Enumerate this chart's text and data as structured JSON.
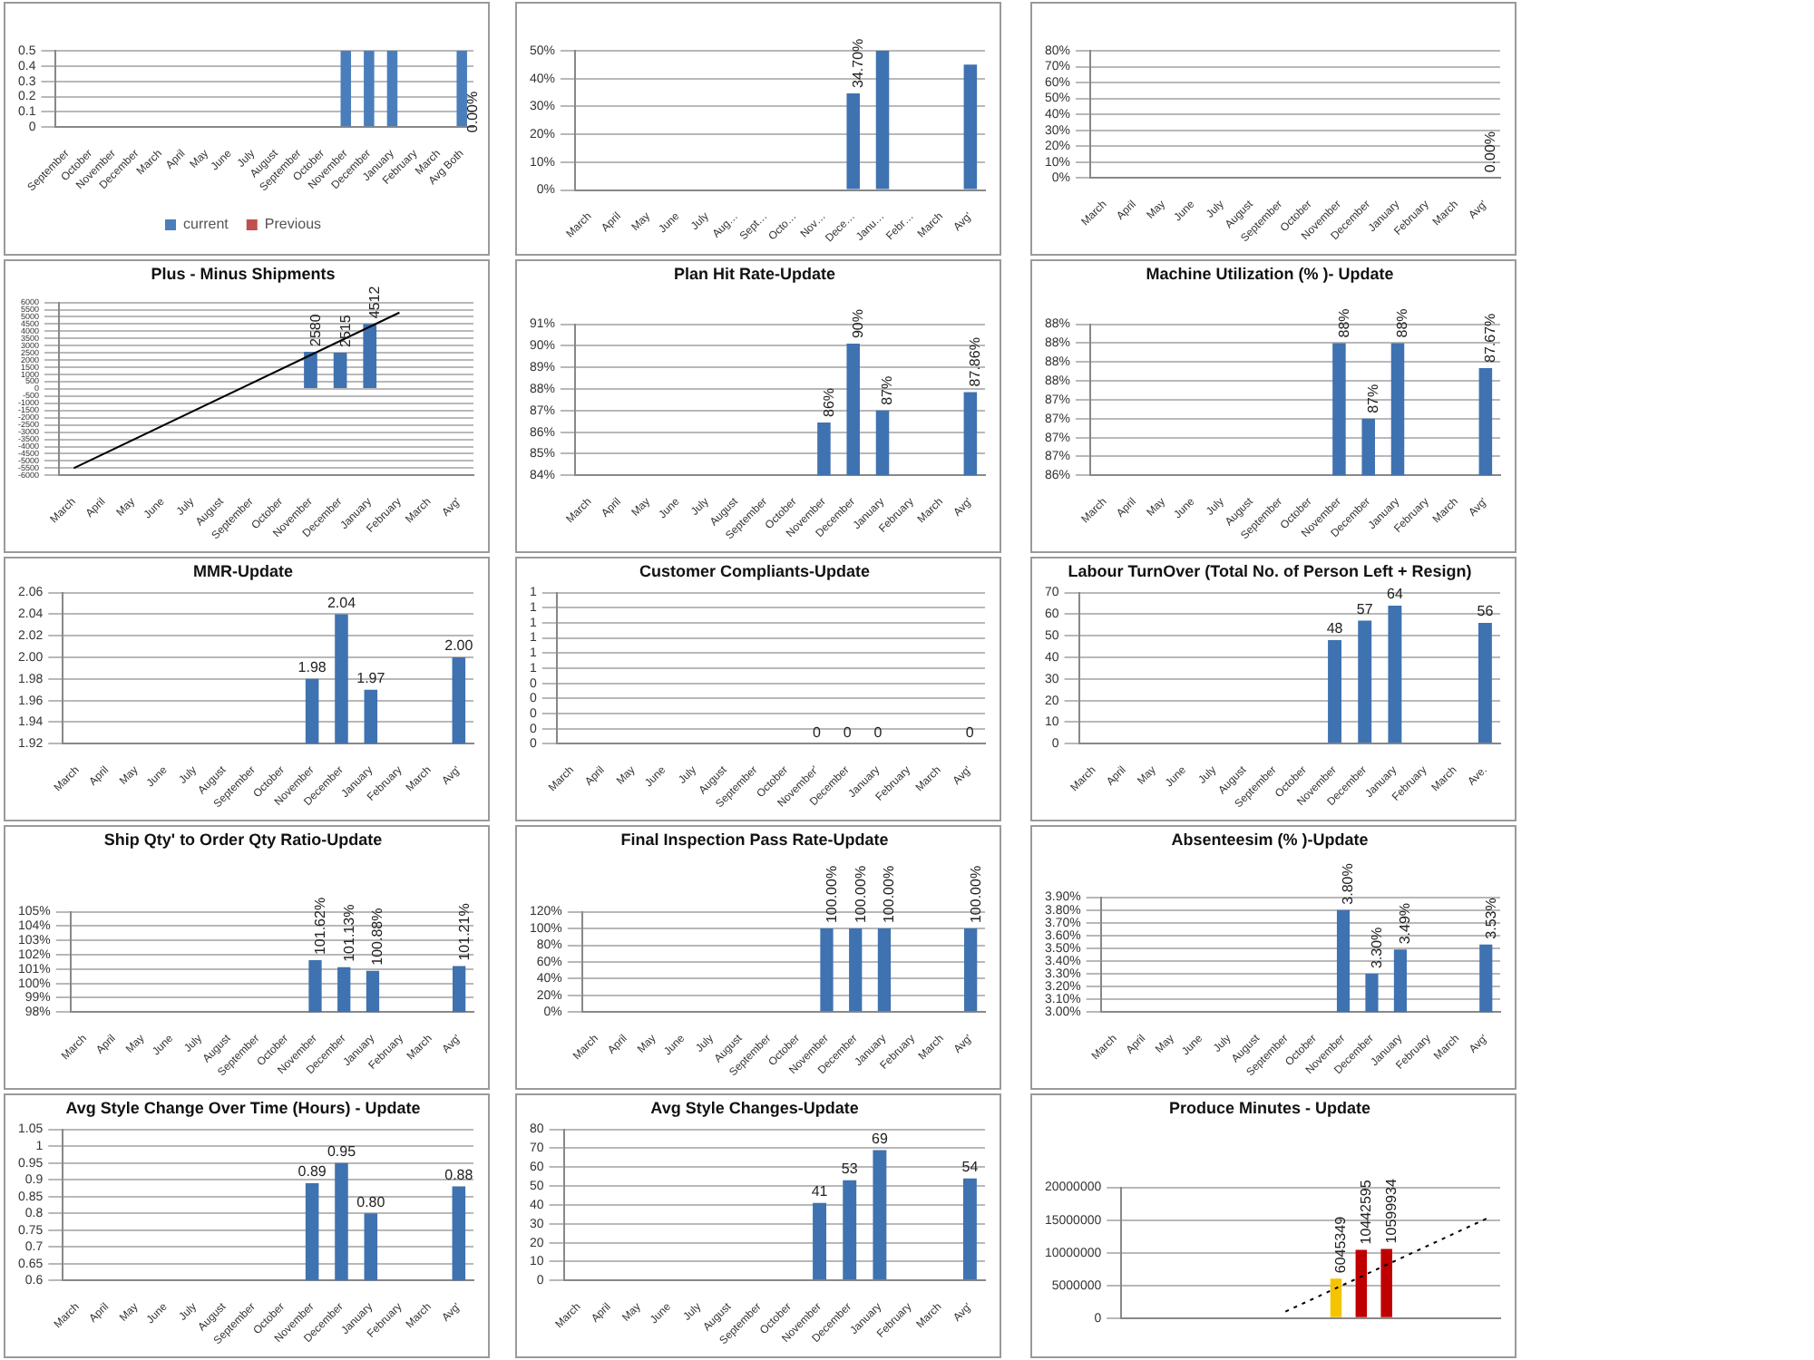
{
  "chart_data": [
    {
      "type": "bar",
      "categories": [
        "September",
        "October",
        "November",
        "December",
        "March",
        "April",
        "May",
        "June",
        "July",
        "August",
        "September",
        "October",
        "November",
        "December",
        "January",
        "February",
        "March",
        "Avg Both"
      ],
      "series": [
        {
          "name": "current",
          "color": "#4a7ebb",
          "values": [
            null,
            null,
            null,
            null,
            null,
            null,
            null,
            null,
            null,
            null,
            null,
            null,
            0.5,
            0.5,
            0.5,
            null,
            null,
            0.5
          ]
        },
        {
          "name": "Previous",
          "color": "#c0504d",
          "values": [
            null,
            null,
            null,
            null,
            null,
            null,
            null,
            null,
            null,
            null,
            null,
            null,
            null,
            null,
            null,
            null,
            null,
            null
          ]
        }
      ],
      "ylim": [
        0,
        0.5
      ],
      "yticks": [
        0,
        0.1,
        0.2,
        0.3,
        0.4,
        0.5
      ],
      "grid": "y",
      "legend": "bottom",
      "annotations": [
        {
          "text": "0.00%",
          "x": "Avg Both",
          "y": 0.1
        }
      ]
    },
    {
      "type": "bar",
      "categories": [
        "March",
        "April",
        "May",
        "June",
        "July",
        "Aug…",
        "Sept…",
        "Octo…",
        "Nov…",
        "Dece…",
        "Janu…",
        "Febr…",
        "March",
        "Avg'"
      ],
      "series": [
        {
          "color": "#3f72b0",
          "values": [
            null,
            null,
            null,
            null,
            null,
            null,
            null,
            null,
            null,
            34.7,
            50,
            null,
            null,
            45
          ],
          "value_labels": [
            null,
            null,
            null,
            null,
            null,
            null,
            null,
            null,
            null,
            "34.70%",
            null,
            null,
            null,
            null
          ]
        }
      ],
      "ylim": [
        0,
        50
      ],
      "yticks": [
        {
          "value": 0,
          "label": "0%"
        },
        {
          "value": 10,
          "label": "10%"
        },
        {
          "value": 20,
          "label": "20%"
        },
        {
          "value": 30,
          "label": "30%"
        },
        {
          "value": 40,
          "label": "40%"
        },
        {
          "value": 50,
          "label": "50%"
        }
      ],
      "grid": "y"
    },
    {
      "type": "bar",
      "categories": [
        "March",
        "April",
        "May",
        "June",
        "July",
        "August",
        "September",
        "October",
        "November",
        "December",
        "January",
        "February",
        "March",
        "Avg'"
      ],
      "series": [
        {
          "color": "#3f72b0",
          "values": [
            null,
            null,
            null,
            null,
            null,
            null,
            null,
            null,
            null,
            null,
            null,
            null,
            null,
            0
          ],
          "value_labels": [
            null,
            null,
            null,
            null,
            null,
            null,
            null,
            null,
            null,
            null,
            null,
            null,
            null,
            "0.00%"
          ]
        }
      ],
      "ylim": [
        0,
        80
      ],
      "yticks": [
        {
          "value": 0,
          "label": "0%"
        },
        {
          "value": 10,
          "label": "10%"
        },
        {
          "value": 20,
          "label": "20%"
        },
        {
          "value": 30,
          "label": "30%"
        },
        {
          "value": 40,
          "label": "40%"
        },
        {
          "value": 50,
          "label": "50%"
        },
        {
          "value": 60,
          "label": "60%"
        },
        {
          "value": 70,
          "label": "70%"
        },
        {
          "value": 80,
          "label": "80%"
        }
      ],
      "grid": "y"
    },
    {
      "type": "bar",
      "title": "Plus - Minus Shipments",
      "categories": [
        "March",
        "April",
        "May",
        "June",
        "July",
        "August",
        "September",
        "October",
        "November",
        "December",
        "January",
        "February",
        "March",
        "Avg'"
      ],
      "series": [
        {
          "color": "#3f72b0",
          "values": [
            null,
            null,
            null,
            null,
            null,
            null,
            null,
            null,
            2580,
            2515,
            4512,
            null,
            null,
            null
          ],
          "value_labels": [
            null,
            null,
            null,
            null,
            null,
            null,
            null,
            null,
            "2580",
            "2515",
            "4512",
            null,
            null,
            null
          ]
        },
        {
          "type": "line",
          "color": "#000000",
          "values": [
            -5500,
            null,
            null,
            null,
            null,
            null,
            null,
            null,
            null,
            null,
            null,
            5300,
            null,
            null
          ]
        }
      ],
      "ylim": [
        -6000,
        6000
      ],
      "yticks": [
        -6000,
        -5500,
        -5000,
        -4500,
        -4000,
        -3500,
        -3000,
        -2500,
        -2000,
        -1500,
        -1000,
        -500,
        0,
        500,
        1000,
        1500,
        2000,
        2500,
        3000,
        3500,
        4000,
        4500,
        5000,
        5500,
        6000
      ],
      "grid": "y"
    },
    {
      "type": "bar",
      "title": "Plan Hit Rate-Update",
      "categories": [
        "March",
        "April",
        "May",
        "June",
        "July",
        "August",
        "September",
        "October",
        "November",
        "December",
        "January",
        "February",
        "March",
        "Avg'"
      ],
      "series": [
        {
          "color": "#3f72b0",
          "values": [
            null,
            null,
            null,
            null,
            null,
            null,
            null,
            null,
            86.45,
            90.1,
            87,
            null,
            null,
            87.86
          ],
          "value_labels": [
            null,
            null,
            null,
            null,
            null,
            null,
            null,
            null,
            "86%",
            "90%",
            "87%",
            null,
            null,
            "87.86%"
          ]
        }
      ],
      "ylim": [
        84,
        91
      ],
      "yticks": [
        {
          "value": 84,
          "label": "84%"
        },
        {
          "value": 85,
          "label": "85%"
        },
        {
          "value": 86,
          "label": "86%"
        },
        {
          "value": 87,
          "label": "87%"
        },
        {
          "value": 88,
          "label": "88%"
        },
        {
          "value": 89,
          "label": "89%"
        },
        {
          "value": 90,
          "label": "90%"
        },
        {
          "value": 91,
          "label": "91%"
        }
      ],
      "grid": "y"
    },
    {
      "type": "bar",
      "title": "Machine Utilization (% )- Update",
      "categories": [
        "March",
        "April",
        "May",
        "June",
        "July",
        "August",
        "September",
        "October",
        "November",
        "December",
        "January",
        "February",
        "March",
        "Avg'"
      ],
      "series": [
        {
          "color": "#3f72b0",
          "values": [
            null,
            null,
            null,
            null,
            null,
            null,
            null,
            null,
            88,
            87,
            88,
            null,
            null,
            87.67
          ],
          "value_labels": [
            null,
            null,
            null,
            null,
            null,
            null,
            null,
            null,
            "88%",
            "87%",
            "88%",
            null,
            null,
            "87.67%"
          ]
        }
      ],
      "ylim": [
        86.25,
        88.25
      ],
      "yticks": [
        {
          "value": 86.25,
          "label": "86%"
        },
        {
          "value": 86.5,
          "label": "87%"
        },
        {
          "value": 86.75,
          "label": "87%"
        },
        {
          "value": 87,
          "label": "87%"
        },
        {
          "value": 87.25,
          "label": "87%"
        },
        {
          "value": 87.5,
          "label": "88%"
        },
        {
          "value": 87.75,
          "label": "88%"
        },
        {
          "value": 88,
          "label": "88%"
        },
        {
          "value": 88.25,
          "label": "88%"
        }
      ],
      "grid": "y"
    },
    {
      "type": "bar",
      "title": "MMR-Update",
      "categories": [
        "March",
        "April",
        "May",
        "June",
        "July",
        "August",
        "September",
        "October",
        "November",
        "December",
        "January",
        "February",
        "March",
        "Avg'"
      ],
      "series": [
        {
          "color": "#3f72b0",
          "values": [
            null,
            null,
            null,
            null,
            null,
            null,
            null,
            null,
            1.98,
            2.04,
            1.97,
            null,
            null,
            2.0
          ],
          "value_labels": [
            null,
            null,
            null,
            null,
            null,
            null,
            null,
            null,
            "1.98",
            "2.04",
            "1.97",
            null,
            null,
            "2.00"
          ]
        }
      ],
      "ylim": [
        1.92,
        2.06
      ],
      "yticks": [
        {
          "value": 1.92,
          "label": "1.92"
        },
        {
          "value": 1.94,
          "label": "1.94"
        },
        {
          "value": 1.96,
          "label": "1.96"
        },
        {
          "value": 1.98,
          "label": "1.98"
        },
        {
          "value": 2.0,
          "label": "2.00"
        },
        {
          "value": 2.02,
          "label": "2.02"
        },
        {
          "value": 2.04,
          "label": "2.04"
        },
        {
          "value": 2.06,
          "label": "2.06"
        }
      ],
      "grid": "y"
    },
    {
      "type": "bar",
      "title": "Customer Compliants-Update",
      "categories": [
        "March",
        "April",
        "May",
        "June",
        "July",
        "August",
        "September",
        "October",
        "November'",
        "December",
        "January",
        "February",
        "March",
        "Avg'"
      ],
      "series": [
        {
          "color": "#3f72b0",
          "values": [
            null,
            null,
            null,
            null,
            null,
            null,
            null,
            null,
            0,
            0,
            0,
            null,
            null,
            0
          ],
          "value_labels": [
            null,
            null,
            null,
            null,
            null,
            null,
            null,
            null,
            "0",
            "0",
            "0",
            null,
            null,
            "0"
          ]
        }
      ],
      "ylim": [
        0,
        1
      ],
      "yticks": [
        {
          "value": 0,
          "label": "0"
        },
        {
          "value": 0.1,
          "label": "0"
        },
        {
          "value": 0.2,
          "label": "0"
        },
        {
          "value": 0.3,
          "label": "0"
        },
        {
          "value": 0.4,
          "label": "0"
        },
        {
          "value": 0.5,
          "label": "1"
        },
        {
          "value": 0.6,
          "label": "1"
        },
        {
          "value": 0.7,
          "label": "1"
        },
        {
          "value": 0.8,
          "label": "1"
        },
        {
          "value": 0.9,
          "label": "1"
        },
        {
          "value": 1,
          "label": "1"
        }
      ],
      "grid": "y"
    },
    {
      "type": "bar",
      "title": "Labour TurnOver (Total No. of Person Left + Resign)",
      "categories": [
        "March",
        "April",
        "May",
        "June",
        "July",
        "August",
        "September",
        "October",
        "November",
        "December",
        "January",
        "February",
        "March",
        "Ave."
      ],
      "series": [
        {
          "color": "#3f72b0",
          "values": [
            null,
            null,
            null,
            null,
            null,
            null,
            null,
            null,
            48,
            57,
            64,
            null,
            null,
            56
          ],
          "value_labels": [
            null,
            null,
            null,
            null,
            null,
            null,
            null,
            null,
            "48",
            "57",
            "64",
            null,
            null,
            "56"
          ]
        }
      ],
      "ylim": [
        0,
        70
      ],
      "yticks": [
        0,
        10,
        20,
        30,
        40,
        50,
        60,
        70
      ],
      "grid": "y"
    },
    {
      "type": "bar",
      "title": "Ship Qty' to Order Qty Ratio-Update",
      "categories": [
        "March",
        "April",
        "May",
        "June",
        "July",
        "August",
        "September",
        "October",
        "November",
        "December",
        "January",
        "February",
        "March",
        "Avg'"
      ],
      "series": [
        {
          "color": "#3f72b0",
          "values": [
            null,
            null,
            null,
            null,
            null,
            null,
            null,
            null,
            101.62,
            101.13,
            100.88,
            null,
            null,
            101.21
          ],
          "value_labels": [
            null,
            null,
            null,
            null,
            null,
            null,
            null,
            null,
            "101.62%",
            "101.13%",
            "100.88%",
            null,
            null,
            "101.21%"
          ]
        }
      ],
      "ylim": [
        98,
        105
      ],
      "yticks": [
        {
          "value": 98,
          "label": "98%"
        },
        {
          "value": 99,
          "label": "99%"
        },
        {
          "value": 100,
          "label": "100%"
        },
        {
          "value": 101,
          "label": "101%"
        },
        {
          "value": 102,
          "label": "102%"
        },
        {
          "value": 103,
          "label": "103%"
        },
        {
          "value": 104,
          "label": "104%"
        },
        {
          "value": 105,
          "label": "105%"
        }
      ],
      "grid": "y"
    },
    {
      "type": "bar",
      "title": "Final Inspection Pass Rate-Update",
      "categories": [
        "March",
        "April",
        "May",
        "June",
        "July",
        "August",
        "September",
        "October",
        "November",
        "December",
        "January",
        "February",
        "March",
        "Avg'"
      ],
      "series": [
        {
          "color": "#3f72b0",
          "values": [
            null,
            null,
            null,
            null,
            null,
            null,
            null,
            null,
            100,
            100,
            100,
            null,
            null,
            100
          ],
          "value_labels": [
            null,
            null,
            null,
            null,
            null,
            null,
            null,
            null,
            "100.00%",
            "100.00%",
            "100.00%",
            null,
            null,
            "100.00%"
          ]
        }
      ],
      "ylim": [
        0,
        120
      ],
      "yticks": [
        {
          "value": 0,
          "label": "0%"
        },
        {
          "value": 20,
          "label": "20%"
        },
        {
          "value": 40,
          "label": "40%"
        },
        {
          "value": 60,
          "label": "60%"
        },
        {
          "value": 80,
          "label": "80%"
        },
        {
          "value": 100,
          "label": "100%"
        },
        {
          "value": 120,
          "label": "120%"
        }
      ],
      "grid": "y"
    },
    {
      "type": "bar",
      "title": "Absenteesim (% )-Update",
      "categories": [
        "March",
        "April",
        "May",
        "June",
        "July",
        "August",
        "September",
        "October",
        "November",
        "December",
        "January",
        "February",
        "March",
        "Avg'"
      ],
      "series": [
        {
          "color": "#3f72b0",
          "values": [
            null,
            null,
            null,
            null,
            null,
            null,
            null,
            null,
            3.8,
            3.3,
            3.49,
            null,
            null,
            3.53
          ],
          "value_labels": [
            null,
            null,
            null,
            null,
            null,
            null,
            null,
            null,
            "3.80%",
            "3.30%",
            "3.49%",
            null,
            null,
            "3.53%"
          ]
        }
      ],
      "ylim": [
        3.0,
        3.9
      ],
      "yticks": [
        {
          "value": 3.0,
          "label": "3.00%"
        },
        {
          "value": 3.1,
          "label": "3.10%"
        },
        {
          "value": 3.2,
          "label": "3.20%"
        },
        {
          "value": 3.3,
          "label": "3.30%"
        },
        {
          "value": 3.4,
          "label": "3.40%"
        },
        {
          "value": 3.5,
          "label": "3.50%"
        },
        {
          "value": 3.6,
          "label": "3.60%"
        },
        {
          "value": 3.7,
          "label": "3.70%"
        },
        {
          "value": 3.8,
          "label": "3.80%"
        },
        {
          "value": 3.9,
          "label": "3.90%"
        }
      ],
      "grid": "y"
    },
    {
      "type": "bar",
      "title": "Avg Style Change Over Time (Hours) - Update",
      "categories": [
        "March",
        "April",
        "May",
        "June",
        "July",
        "August",
        "September",
        "October",
        "November",
        "December",
        "January",
        "February",
        "March",
        "Avg'"
      ],
      "series": [
        {
          "color": "#3f72b0",
          "values": [
            null,
            null,
            null,
            null,
            null,
            null,
            null,
            null,
            0.89,
            0.95,
            0.8,
            null,
            null,
            0.88
          ],
          "value_labels": [
            null,
            null,
            null,
            null,
            null,
            null,
            null,
            null,
            "0.89",
            "0.95",
            "0.80",
            null,
            null,
            "0.88"
          ]
        }
      ],
      "ylim": [
        0.6,
        1.05
      ],
      "yticks": [
        0.6,
        0.65,
        0.7,
        0.75,
        0.8,
        0.85,
        0.9,
        0.95,
        1.0,
        1.05
      ],
      "grid": "y"
    },
    {
      "type": "bar",
      "title": "Avg Style Changes-Update",
      "categories": [
        "March",
        "April",
        "May",
        "June",
        "July",
        "August",
        "September",
        "October",
        "November",
        "December",
        "January",
        "February",
        "March",
        "Avg'"
      ],
      "series": [
        {
          "color": "#3f72b0",
          "values": [
            null,
            null,
            null,
            null,
            null,
            null,
            null,
            null,
            41,
            53,
            69,
            null,
            null,
            54
          ],
          "value_labels": [
            null,
            null,
            null,
            null,
            null,
            null,
            null,
            null,
            "41",
            "53",
            "69",
            null,
            null,
            "54"
          ]
        }
      ],
      "ylim": [
        0,
        80
      ],
      "yticks": [
        0,
        10,
        20,
        30,
        40,
        50,
        60,
        70,
        80
      ],
      "grid": "y"
    },
    {
      "type": "bar",
      "title": "Produce Minutes - Update",
      "categories": [
        null,
        null,
        null,
        null,
        null,
        null,
        null,
        null,
        null,
        null,
        null,
        null,
        null,
        null,
        null
      ],
      "series": [
        {
          "colors": [
            "#c00000",
            "#c00000",
            "#c00000",
            "#c00000",
            "#c00000",
            "#c00000",
            "#c00000",
            "#c00000",
            "#f5c400",
            "#c00000",
            "#c00000",
            "#c00000",
            "#c00000",
            "#c00000",
            "#c00000"
          ],
          "values": [
            null,
            null,
            null,
            null,
            null,
            null,
            null,
            null,
            6045349,
            10442595,
            10599934,
            null,
            null,
            null,
            null
          ],
          "value_labels": [
            null,
            null,
            null,
            null,
            null,
            null,
            null,
            null,
            "6045349",
            "10442595",
            "10599934",
            null,
            null,
            null,
            null
          ]
        },
        {
          "type": "line",
          "color": "#000000",
          "line_style": "dotted",
          "values": [
            null,
            null,
            null,
            null,
            null,
            null,
            1000000,
            null,
            null,
            null,
            null,
            null,
            null,
            null,
            15300000
          ]
        }
      ],
      "ylim": [
        0,
        20000000
      ],
      "yticks": [
        0,
        5000000,
        10000000,
        15000000,
        20000000
      ],
      "grid": "y"
    }
  ]
}
